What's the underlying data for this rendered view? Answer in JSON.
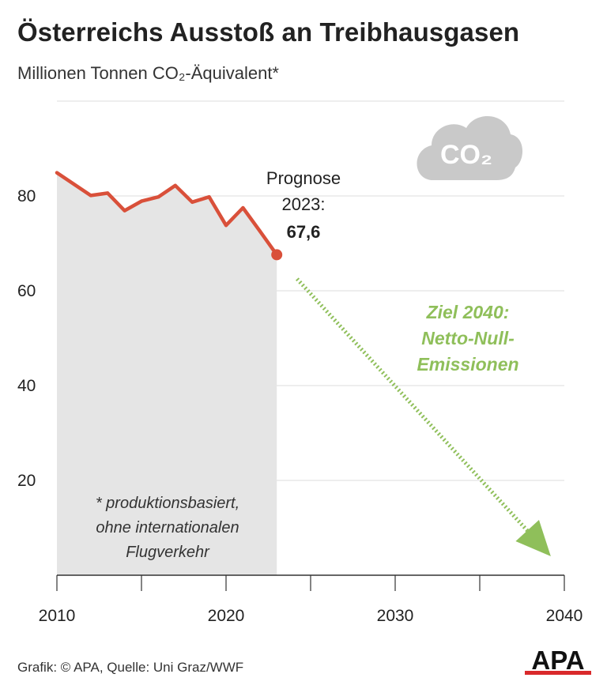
{
  "title": "Österreichs Ausstoß an Treibhausgasen",
  "subtitle": "Millionen Tonnen CO₂-Äquivalent*",
  "footer": "Grafik: © APA, Quelle: Uni Graz/WWF",
  "logo_text": "APA",
  "cloud_label": "CO₂",
  "colors": {
    "series": "#d9503a",
    "area": "#e5e5e5",
    "target": "#8fbf5a",
    "grid": "#dddddd",
    "cloud": "#c9c9c9"
  },
  "chart_data": {
    "type": "line",
    "x": [
      2010,
      2011,
      2012,
      2013,
      2014,
      2015,
      2016,
      2017,
      2018,
      2019,
      2020,
      2021,
      2022,
      2023
    ],
    "series": [
      {
        "values": [
          84.9,
          82.5,
          80.1,
          80.6,
          76.9,
          78.9,
          79.8,
          82.2,
          78.7,
          79.8,
          73.8,
          77.5,
          72.6,
          67.6
        ]
      }
    ],
    "projection": {
      "from": [
        2024.2,
        62.5
      ],
      "to": [
        2039.2,
        4
      ],
      "label_lines": [
        "Ziel 2040:",
        "Netto-Null-",
        "Emissionen"
      ]
    },
    "annotation": {
      "lines": [
        "Prognose",
        "2023:"
      ],
      "value": "67,6"
    },
    "footnote": [
      "* produktionsbasiert,",
      "ohne internationalen",
      "Flugverkehr"
    ],
    "xlim": [
      2010,
      2040
    ],
    "ylim": [
      0,
      100
    ],
    "x_ticks": [
      2010,
      2020,
      2030,
      2040
    ],
    "y_ticks": [
      20,
      40,
      60,
      80
    ],
    "grid": "horizontal",
    "shaded_historical": true
  }
}
